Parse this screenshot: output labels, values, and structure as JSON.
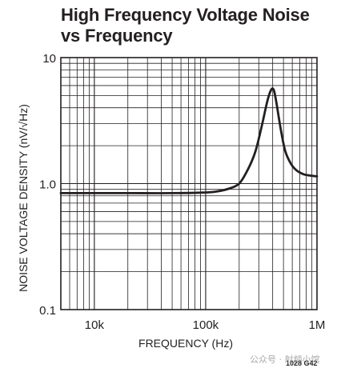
{
  "chart_data": {
    "type": "line",
    "title_line1": "High Frequency Voltage Noise",
    "title_line2": "vs Frequency",
    "xlabel": "FREQUENCY (Hz)",
    "ylabel": "NOISE VOLTAGE DENSITY (nV/√Hz)",
    "x_scale": "log",
    "y_scale": "log",
    "xlim": [
      5000,
      1000000
    ],
    "ylim": [
      0.1,
      10
    ],
    "x_ticks": [
      {
        "value": 10000,
        "label": "10k"
      },
      {
        "value": 100000,
        "label": "100k"
      },
      {
        "value": 1000000,
        "label": "1M"
      }
    ],
    "y_ticks": [
      {
        "value": 0.1,
        "label": "0.1"
      },
      {
        "value": 1.0,
        "label": "1.0"
      },
      {
        "value": 10,
        "label": "10"
      }
    ],
    "grid": true,
    "series": [
      {
        "x": [
          5000,
          10000,
          20000,
          50000,
          100000,
          130000,
          160000,
          200000,
          240000,
          280000,
          320000,
          360000,
          390000,
          410000,
          430000,
          450000,
          480000,
          520000,
          580000,
          650000,
          750000,
          850000,
          1000000
        ],
        "y": [
          0.84,
          0.84,
          0.84,
          0.84,
          0.85,
          0.87,
          0.91,
          1.0,
          1.3,
          1.8,
          2.9,
          4.6,
          5.6,
          5.5,
          4.5,
          3.5,
          2.5,
          1.8,
          1.45,
          1.28,
          1.19,
          1.16,
          1.14
        ]
      }
    ]
  },
  "footer_code": "1028 G42",
  "watermark_text": "公众号 · 射频小馆"
}
